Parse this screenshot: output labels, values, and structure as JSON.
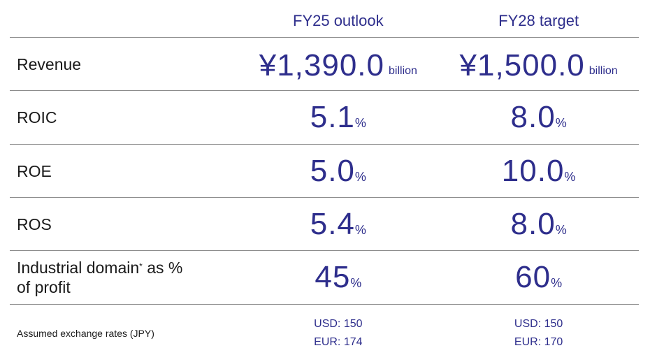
{
  "header": {
    "col1": "FY25 outlook",
    "col2": "FY28 target"
  },
  "rows": [
    {
      "label": "Revenue",
      "fy25": "¥1,390.0",
      "fy28": "¥1,500.0",
      "unit": "billion"
    },
    {
      "label": "ROIC",
      "fy25": "5.1",
      "fy28": "8.0",
      "unit": "%"
    },
    {
      "label": "ROE",
      "fy25": "5.0",
      "fy28": "10.0",
      "unit": "%"
    },
    {
      "label": "ROS",
      "fy25": "5.4",
      "fy28": "8.0",
      "unit": "%"
    },
    {
      "label_line1_pre": "Industrial domain",
      "label_sup": "*",
      "label_line1_post": "as %",
      "label_line2": "of profit",
      "fy25": "45",
      "fy28": "60",
      "unit": "%"
    }
  ],
  "footer": {
    "label": "Assumed exchange rates (JPY)",
    "fy25_usd": "USD: 150",
    "fy25_eur": "EUR: 174",
    "fy28_usd": "USD: 150",
    "fy28_eur": "EUR: 170"
  },
  "colors": {
    "accent": "#2e2e8c",
    "text": "#1a1a1a",
    "rule": "#8c8c8c"
  }
}
